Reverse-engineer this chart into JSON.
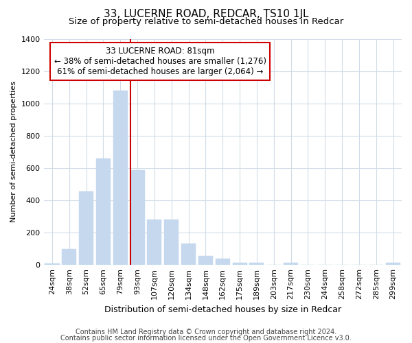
{
  "title": "33, LUCERNE ROAD, REDCAR, TS10 1JL",
  "subtitle": "Size of property relative to semi-detached houses in Redcar",
  "xlabel": "Distribution of semi-detached houses by size in Redcar",
  "ylabel": "Number of semi-detached properties",
  "categories": [
    "24sqm",
    "38sqm",
    "52sqm",
    "65sqm",
    "79sqm",
    "93sqm",
    "107sqm",
    "120sqm",
    "134sqm",
    "148sqm",
    "162sqm",
    "175sqm",
    "189sqm",
    "203sqm",
    "217sqm",
    "230sqm",
    "244sqm",
    "258sqm",
    "272sqm",
    "285sqm",
    "299sqm"
  ],
  "values": [
    10,
    100,
    455,
    660,
    1080,
    585,
    280,
    280,
    133,
    57,
    40,
    15,
    15,
    0,
    15,
    0,
    0,
    0,
    0,
    0,
    15
  ],
  "bar_color": "#c5d8ed",
  "bar_edgecolor": "#c5d8ed",
  "vline_index": 5,
  "vline_color": "#cc0000",
  "annotation_line1": "33 LUCERNE ROAD: 81sqm",
  "annotation_line2": "← 38% of semi-detached houses are smaller (1,276)",
  "annotation_line3": "61% of semi-detached houses are larger (2,064) →",
  "annotation_box_color": "#ffffff",
  "annotation_box_edgecolor": "#cc0000",
  "ylim": [
    0,
    1400
  ],
  "yticks": [
    0,
    200,
    400,
    600,
    800,
    1000,
    1200,
    1400
  ],
  "bg_color": "#ffffff",
  "plot_bg_color": "#ffffff",
  "grid_color": "#d0dce8",
  "footer_line1": "Contains HM Land Registry data © Crown copyright and database right 2024.",
  "footer_line2": "Contains public sector information licensed under the Open Government Licence v3.0.",
  "title_fontsize": 11,
  "subtitle_fontsize": 9.5,
  "annotation_fontsize": 8.5,
  "footer_fontsize": 7,
  "ylabel_fontsize": 8,
  "xlabel_fontsize": 9
}
